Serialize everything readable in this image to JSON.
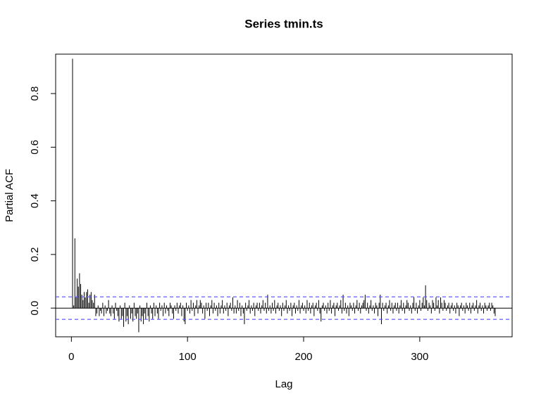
{
  "chart_data": {
    "type": "pacf",
    "title": "Series  tmin.ts",
    "xlabel": "Lag",
    "ylabel": "Partial ACF",
    "x": [
      1,
      2,
      3,
      4,
      5,
      6,
      7,
      8,
      9,
      10,
      11,
      12,
      13,
      14,
      15,
      16,
      17,
      18,
      19,
      20,
      21,
      22,
      23,
      24,
      25,
      26,
      27,
      28,
      29,
      30,
      31,
      32,
      33,
      34,
      35,
      36,
      37,
      38,
      39,
      40,
      41,
      42,
      43,
      44,
      45,
      46,
      47,
      48,
      49,
      50,
      51,
      52,
      53,
      54,
      55,
      56,
      57,
      58,
      59,
      60,
      61,
      62,
      63,
      64,
      65,
      66,
      67,
      68,
      69,
      70,
      71,
      72,
      73,
      74,
      75,
      76,
      77,
      78,
      79,
      80,
      81,
      82,
      83,
      84,
      85,
      86,
      87,
      88,
      89,
      90,
      91,
      92,
      93,
      94,
      95,
      96,
      97,
      98,
      99,
      100,
      101,
      102,
      103,
      104,
      105,
      106,
      107,
      108,
      109,
      110,
      111,
      112,
      113,
      114,
      115,
      116,
      117,
      118,
      119,
      120,
      121,
      122,
      123,
      124,
      125,
      126,
      127,
      128,
      129,
      130,
      131,
      132,
      133,
      134,
      135,
      136,
      137,
      138,
      139,
      140,
      141,
      142,
      143,
      144,
      145,
      146,
      147,
      148,
      149,
      150,
      151,
      152,
      153,
      154,
      155,
      156,
      157,
      158,
      159,
      160,
      161,
      162,
      163,
      164,
      165,
      166,
      167,
      168,
      169,
      170,
      171,
      172,
      173,
      174,
      175,
      176,
      177,
      178,
      179,
      180,
      181,
      182,
      183,
      184,
      185,
      186,
      187,
      188,
      189,
      190,
      191,
      192,
      193,
      194,
      195,
      196,
      197,
      198,
      199,
      200,
      201,
      202,
      203,
      204,
      205,
      206,
      207,
      208,
      209,
      210,
      211,
      212,
      213,
      214,
      215,
      216,
      217,
      218,
      219,
      220,
      221,
      222,
      223,
      224,
      225,
      226,
      227,
      228,
      229,
      230,
      231,
      232,
      233,
      234,
      235,
      236,
      237,
      238,
      239,
      240,
      241,
      242,
      243,
      244,
      245,
      246,
      247,
      248,
      249,
      250,
      251,
      252,
      253,
      254,
      255,
      256,
      257,
      258,
      259,
      260,
      261,
      262,
      263,
      264,
      265,
      266,
      267,
      268,
      269,
      270,
      271,
      272,
      273,
      274,
      275,
      276,
      277,
      278,
      279,
      280,
      281,
      282,
      283,
      284,
      285,
      286,
      287,
      288,
      289,
      290,
      291,
      292,
      293,
      294,
      295,
      296,
      297,
      298,
      299,
      300,
      301,
      302,
      303,
      304,
      305,
      306,
      307,
      308,
      309,
      310,
      311,
      312,
      313,
      314,
      315,
      316,
      317,
      318,
      319,
      320,
      321,
      322,
      323,
      324,
      325,
      326,
      327,
      328,
      329,
      330,
      331,
      332,
      333,
      334,
      335,
      336,
      337,
      338,
      339,
      340,
      341,
      342,
      343,
      344,
      345,
      346,
      347,
      348,
      349,
      350,
      351,
      352,
      353,
      354,
      355,
      356,
      357,
      358,
      359,
      360,
      361,
      362,
      363,
      364,
      365
    ],
    "values": [
      0.93,
      0.01,
      0.26,
      0.04,
      0.11,
      0.08,
      0.13,
      0.09,
      0.05,
      0.03,
      0.06,
      0.04,
      0.06,
      0.07,
      0.02,
      0.05,
      0.06,
      0.03,
      0.02,
      0.05,
      -0.03,
      -0.02,
      0.01,
      -0.03,
      -0.01,
      -0.02,
      0.02,
      -0.03,
      0.01,
      -0.02,
      -0.01,
      0.03,
      -0.02,
      -0.03,
      0.01,
      -0.02,
      -0.04,
      0.02,
      -0.01,
      -0.03,
      -0.05,
      0.01,
      -0.04,
      -0.03,
      -0.07,
      0.02,
      -0.05,
      -0.03,
      -0.06,
      0.01,
      -0.04,
      -0.02,
      -0.05,
      0.02,
      -0.03,
      -0.04,
      -0.02,
      -0.09,
      0.01,
      -0.05,
      -0.03,
      -0.06,
      -0.02,
      -0.04,
      0.02,
      -0.03,
      -0.05,
      0.01,
      -0.02,
      -0.04,
      0.02,
      -0.03,
      0.01,
      -0.02,
      -0.04,
      0.02,
      -0.01,
      0.01,
      -0.03,
      0.02,
      -0.02,
      0.01,
      -0.01,
      -0.03,
      0.02,
      0.01,
      -0.02,
      -0.04,
      0.01,
      -0.01,
      0.02,
      -0.02,
      0.01,
      0.02,
      -0.03,
      0.01,
      -0.05,
      -0.06,
      0.02,
      -0.01,
      0.01,
      -0.02,
      0.03,
      -0.01,
      0.02,
      -0.03,
      0.01,
      0.03,
      -0.02,
      0.01,
      0.03,
      0.02,
      -0.02,
      0.01,
      -0.04,
      0.02,
      -0.01,
      0.02,
      -0.03,
      0.01,
      0.03,
      -0.02,
      0.02,
      -0.01,
      0.01,
      -0.03,
      0.02,
      -0.02,
      0.01,
      0.03,
      -0.02,
      0.01,
      -0.01,
      0.02,
      -0.03,
      0.01,
      0.02,
      -0.01,
      0.04,
      -0.02,
      0.01,
      -0.02,
      0.03,
      -0.01,
      0.02,
      -0.03,
      0.01,
      -0.02,
      -0.06,
      0.02,
      -0.01,
      0.01,
      0.03,
      -0.02,
      0.01,
      -0.01,
      0.02,
      -0.03,
      0.01,
      0.02,
      -0.01,
      0.02,
      -0.02,
      0.01,
      0.03,
      -0.01,
      0.02,
      -0.02,
      0.05,
      -0.01,
      0.01,
      -0.02,
      0.02,
      -0.01,
      0.03,
      -0.02,
      0.01,
      0.02,
      -0.01,
      0.01,
      -0.03,
      0.02,
      -0.01,
      0.01,
      0.03,
      -0.02,
      0.01,
      -0.01,
      0.02,
      -0.03,
      0.01,
      0.02,
      -0.02,
      0.01,
      -0.01,
      0.03,
      -0.02,
      0.01,
      0.02,
      -0.01,
      0.01,
      -0.02,
      0.03,
      -0.01,
      0.02,
      -0.02,
      0.01,
      0.02,
      -0.03,
      0.01,
      0.02,
      -0.01,
      0.03,
      -0.02,
      -0.05,
      0.01,
      0.02,
      -0.01,
      0.01,
      -0.02,
      0.02,
      -0.01,
      0.03,
      -0.02,
      0.01,
      0.02,
      -0.03,
      0.01,
      0.02,
      -0.01,
      0.01,
      0.03,
      -0.02,
      0.05,
      -0.01,
      0.02,
      -0.02,
      0.01,
      -0.03,
      0.02,
      0.01,
      -0.01,
      0.02,
      -0.02,
      0.01,
      0.03,
      -0.01,
      0.02,
      -0.02,
      0.01,
      0.02,
      0.03,
      0.05,
      -0.01,
      0.02,
      -0.02,
      0.01,
      0.03,
      -0.01,
      0.01,
      -0.02,
      0.02,
      0.01,
      -0.03,
      0.02,
      0.05,
      -0.06,
      0.02,
      -0.01,
      0.01,
      0.02,
      -0.02,
      0.01,
      0.03,
      -0.01,
      0.02,
      -0.02,
      0.01,
      0.02,
      -0.01,
      0.02,
      -0.02,
      0.01,
      0.03,
      -0.01,
      0.02,
      -0.02,
      0.01,
      0.03,
      0.02,
      -0.01,
      0.01,
      -0.02,
      0.02,
      0.04,
      -0.01,
      0.02,
      -0.02,
      0.01,
      0.03,
      -0.01,
      0.02,
      0.04,
      0.01,
      0.085,
      0.03,
      -0.01,
      0.02,
      0.01,
      -0.02,
      0.03,
      0.02,
      -0.01,
      0.04,
      0.01,
      0.03,
      -0.02,
      0.04,
      0.02,
      -0.01,
      0.03,
      0.02,
      -0.01,
      0.01,
      0.02,
      -0.02,
      0.01,
      0.02,
      -0.01,
      0.01,
      -0.02,
      0.02,
      0.01,
      -0.03,
      0.01,
      0.02,
      -0.01,
      0.01,
      -0.02,
      0.02,
      0.01,
      -0.01,
      0.02,
      -0.02,
      0.01,
      0.02,
      -0.01,
      0.01,
      0.03,
      -0.02,
      0.01,
      0.02,
      -0.01,
      0.01,
      -0.02,
      0.02,
      0.01,
      -0.01,
      0.01,
      0.02,
      -0.01,
      0.02,
      0.01,
      -0.02,
      -0.03
    ],
    "color": "#000000",
    "ci_lines": [
      0.042,
      -0.042
    ],
    "ci_color": "#4d4dff",
    "xlim": [
      -13.56,
      379.56
    ],
    "ylim": [
      -0.107,
      0.947
    ],
    "xticks": [
      0,
      100,
      200,
      300
    ],
    "yticks": [
      {
        "value": 0,
        "label": "0.0"
      },
      0.2,
      0.4,
      0.6,
      0.8
    ]
  }
}
